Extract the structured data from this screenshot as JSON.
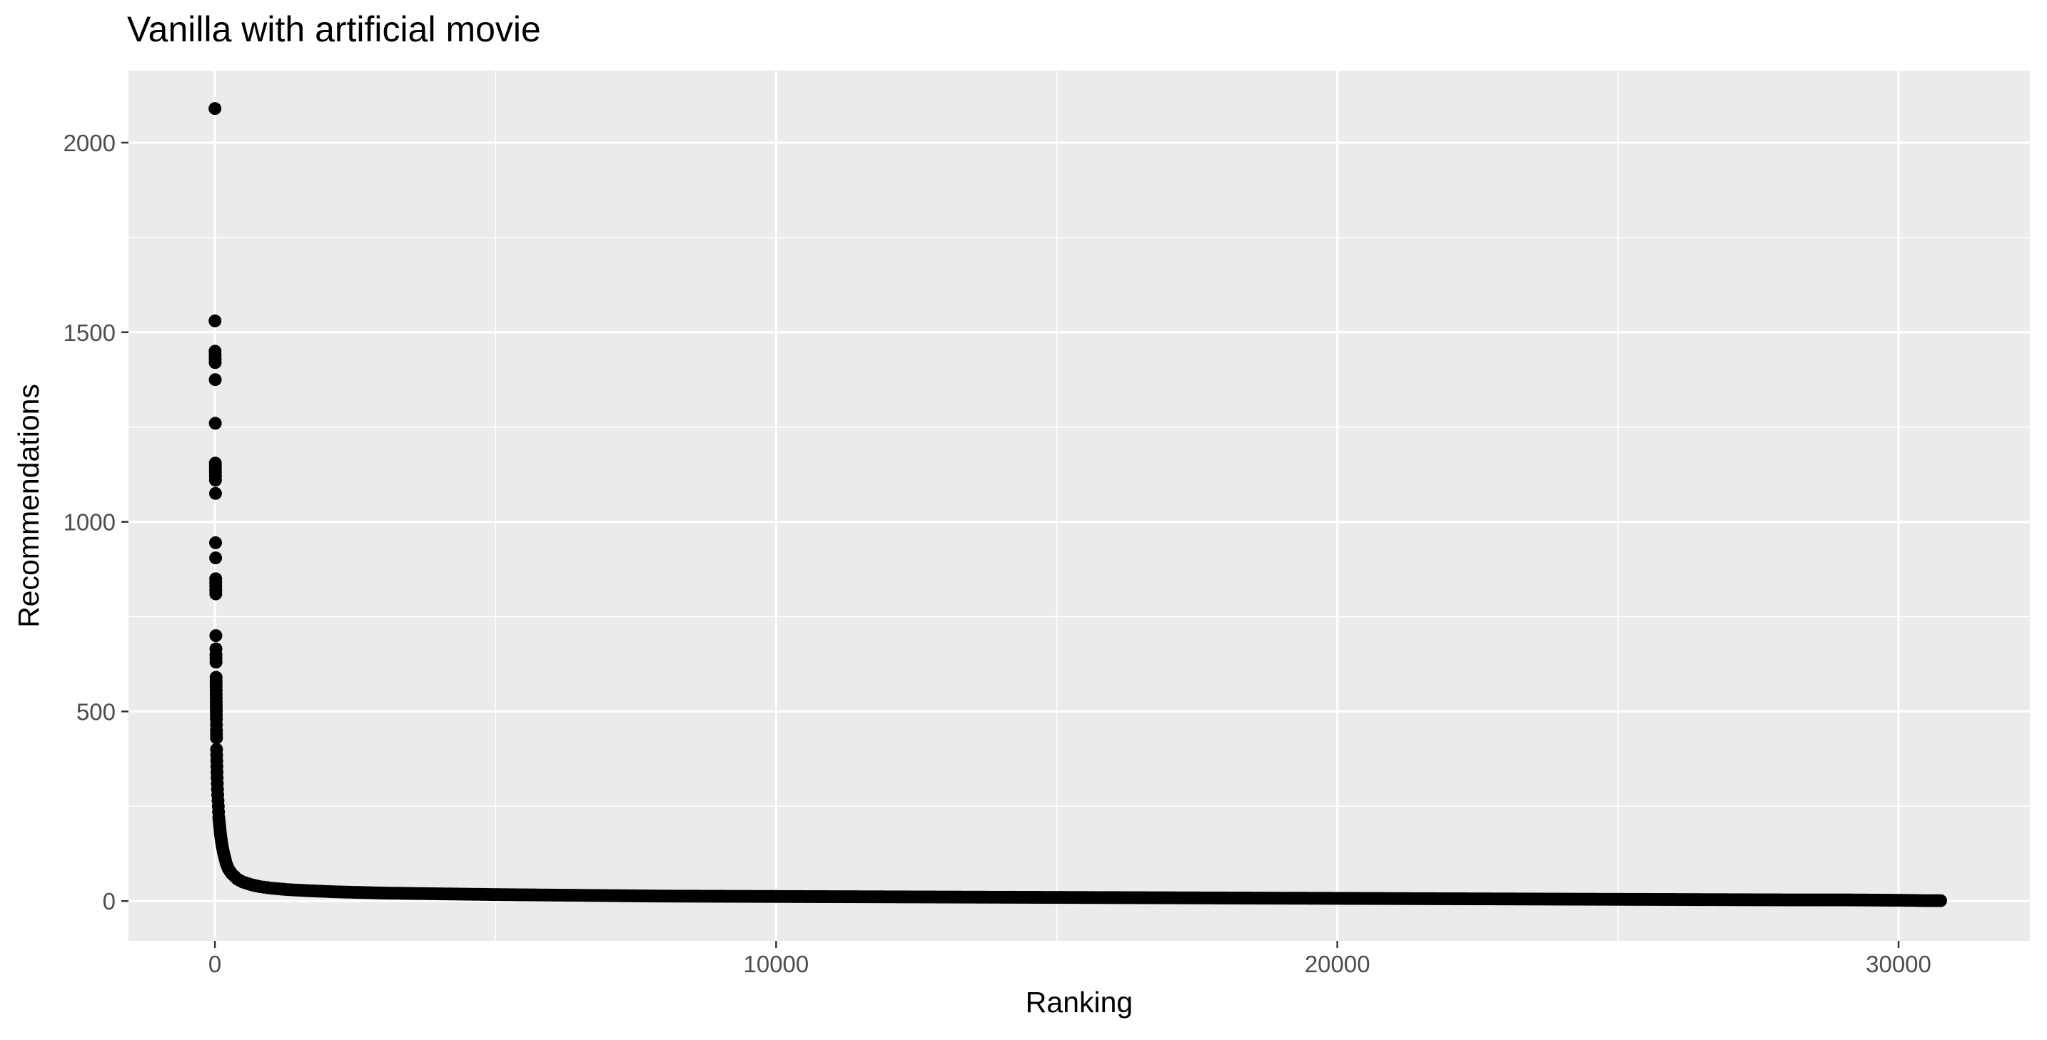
{
  "chart_data": {
    "type": "scatter",
    "title": "Vanilla with artificial movie",
    "xlabel": "Ranking",
    "ylabel": "Recommendations",
    "xlim": [
      -1540,
      32340
    ],
    "ylim": [
      -105,
      2190
    ],
    "x_ticks": [
      0,
      10000,
      20000,
      30000
    ],
    "x_tick_labels": [
      "0",
      "10000",
      "20000",
      "30000"
    ],
    "y_ticks": [
      0,
      500,
      1000,
      1500,
      2000
    ],
    "y_tick_labels": [
      "0",
      "500",
      "1000",
      "1500",
      "2000"
    ],
    "grid": true,
    "legend": "none",
    "colors": {
      "panel": "#EBEBEB",
      "grid": "#FFFFFF",
      "point": "#000000",
      "axis_text": "#4D4D4D",
      "title_text": "#000000"
    },
    "series": [
      {
        "x": [
          1,
          2,
          3,
          4,
          5,
          6,
          7,
          8,
          9,
          10,
          11,
          12,
          13,
          14,
          15,
          16,
          17,
          18,
          19,
          20,
          21,
          22,
          23,
          24,
          25,
          26,
          27,
          28,
          29,
          30,
          32,
          34,
          36,
          38,
          40,
          43,
          46,
          50,
          55,
          60,
          65,
          70,
          80,
          90,
          100,
          115,
          130,
          150,
          175,
          200,
          240,
          300,
          400,
          500,
          650,
          800,
          1000,
          1300,
          1700,
          2200,
          3000,
          4000,
          5000,
          6500,
          8000,
          10000,
          12000,
          14000,
          16000,
          18000,
          20000,
          22000,
          24000,
          26000,
          28000,
          29000,
          30000,
          30500,
          30750
        ],
        "y": [
          2090,
          1530,
          1450,
          1440,
          1420,
          1375,
          1260,
          1155,
          1130,
          1110,
          1075,
          945,
          905,
          850,
          830,
          810,
          700,
          665,
          650,
          630,
          590,
          565,
          545,
          525,
          500,
          480,
          465,
          450,
          430,
          400,
          385,
          370,
          355,
          340,
          325,
          310,
          295,
          280,
          265,
          250,
          235,
          220,
          205,
          190,
          175,
          160,
          145,
          130,
          115,
          100,
          85,
          72,
          58,
          50,
          43,
          38,
          34,
          30,
          27,
          24,
          21,
          19,
          17,
          15,
          13,
          12,
          11,
          10,
          9,
          8,
          7,
          6,
          5,
          4,
          3,
          3,
          2,
          1,
          1
        ]
      }
    ]
  }
}
